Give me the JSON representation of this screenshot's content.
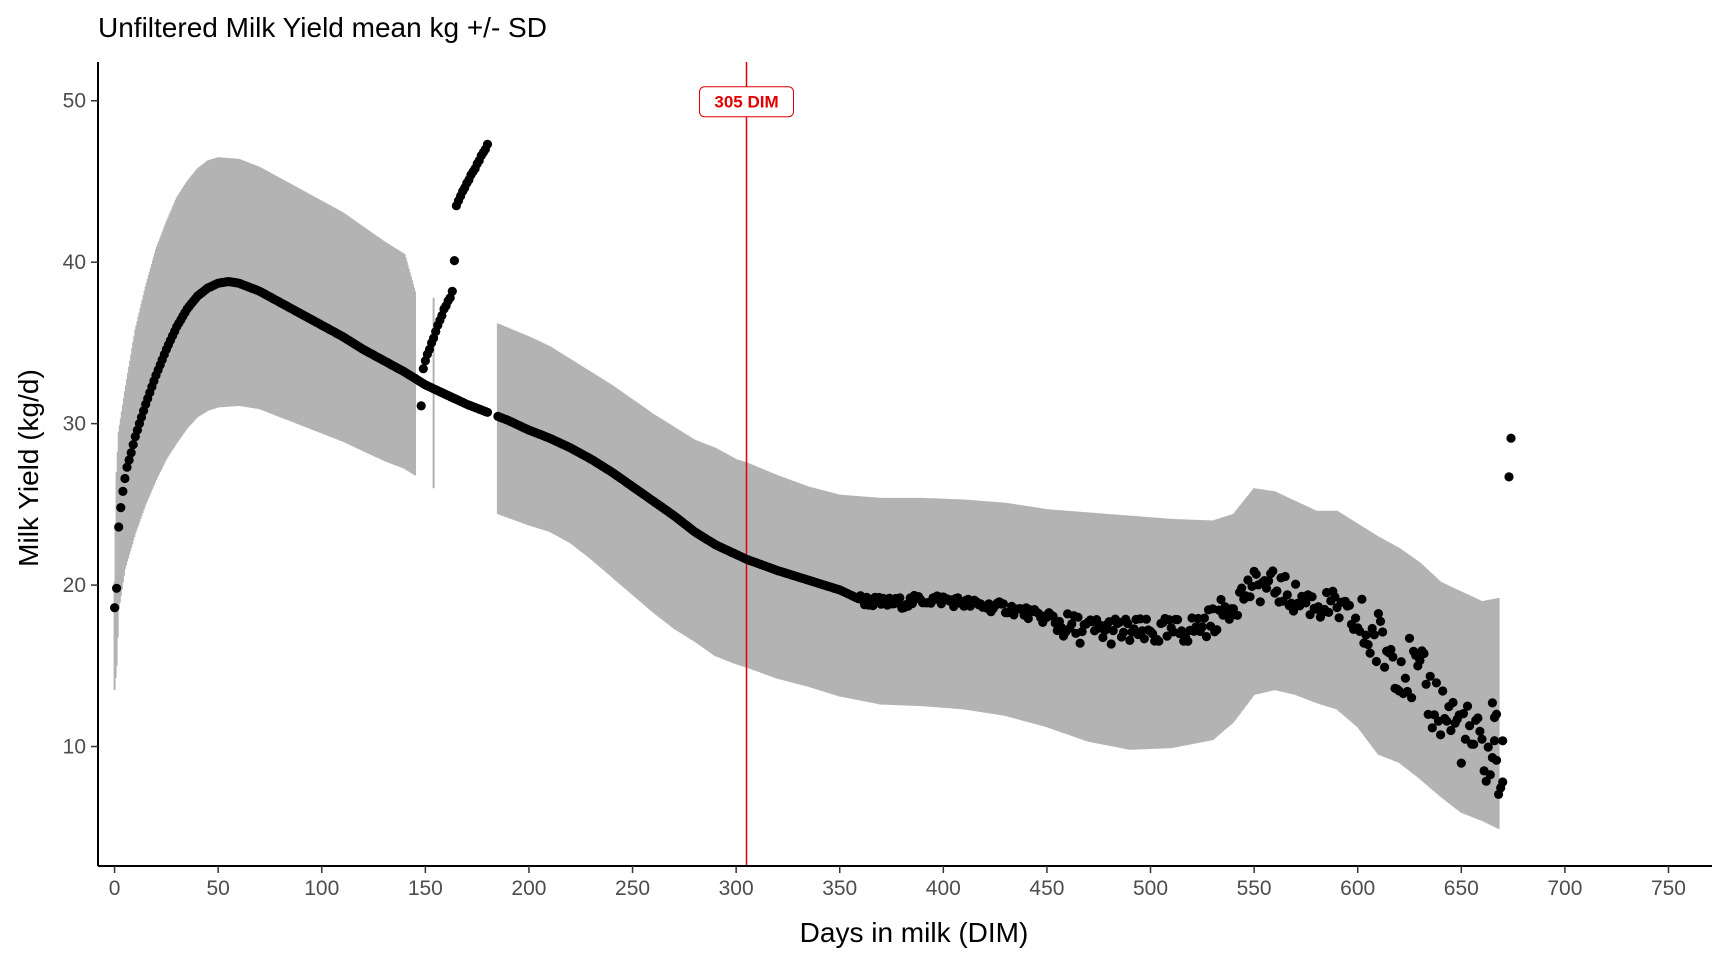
{
  "chart_data": {
    "type": "scatter",
    "title": "Unfiltered Milk Yield mean kg +/- SD",
    "xlabel": "Days in milk (DIM)",
    "ylabel": "Milk Yield (kg/d)",
    "xlim": [
      -8,
      771
    ],
    "ylim": [
      2.6,
      52.4
    ],
    "xticks": [
      0,
      50,
      100,
      150,
      200,
      250,
      300,
      350,
      400,
      450,
      500,
      550,
      600,
      650,
      700,
      750
    ],
    "yticks": [
      10,
      20,
      30,
      40,
      50
    ],
    "grid": false,
    "legend": "none",
    "colors": {
      "points": "#000000",
      "band": "#b3b3b3",
      "reference": "#e00000"
    },
    "reference_line": {
      "x": 305,
      "label": "305 DIM"
    },
    "mean_curve": [
      [
        0,
        18.6
      ],
      [
        1,
        19.8
      ],
      [
        2,
        23.6
      ],
      [
        3,
        24.8
      ],
      [
        4,
        25.8
      ],
      [
        5,
        26.6
      ],
      [
        6,
        27.3
      ],
      [
        8,
        28.2
      ],
      [
        10,
        29.2
      ],
      [
        15,
        31.2
      ],
      [
        20,
        33.0
      ],
      [
        25,
        34.6
      ],
      [
        30,
        36.0
      ],
      [
        35,
        37.1
      ],
      [
        40,
        37.9
      ],
      [
        45,
        38.4
      ],
      [
        50,
        38.7
      ],
      [
        55,
        38.8
      ],
      [
        60,
        38.7
      ],
      [
        70,
        38.2
      ],
      [
        80,
        37.5
      ],
      [
        90,
        36.8
      ],
      [
        100,
        36.1
      ],
      [
        110,
        35.4
      ],
      [
        120,
        34.6
      ],
      [
        130,
        33.9
      ],
      [
        140,
        33.2
      ],
      [
        145,
        32.8
      ],
      [
        150,
        32.4
      ],
      [
        160,
        31.8
      ],
      [
        170,
        31.2
      ],
      [
        180,
        30.7
      ],
      [
        190,
        30.2
      ],
      [
        200,
        29.6
      ],
      [
        210,
        29.1
      ],
      [
        220,
        28.5
      ],
      [
        230,
        27.8
      ],
      [
        240,
        27.0
      ],
      [
        250,
        26.1
      ],
      [
        260,
        25.2
      ],
      [
        270,
        24.3
      ],
      [
        280,
        23.3
      ],
      [
        290,
        22.5
      ],
      [
        300,
        21.9
      ],
      [
        305,
        21.6
      ],
      [
        320,
        20.9
      ],
      [
        335,
        20.3
      ],
      [
        350,
        19.7
      ],
      [
        360,
        19.1
      ],
      [
        370,
        18.9
      ],
      [
        380,
        18.9
      ],
      [
        390,
        19.1
      ],
      [
        400,
        19.1
      ],
      [
        410,
        18.9
      ],
      [
        420,
        18.7
      ],
      [
        430,
        18.6
      ],
      [
        440,
        18.3
      ],
      [
        450,
        17.9
      ],
      [
        460,
        17.4
      ],
      [
        470,
        17.2
      ],
      [
        480,
        17.2
      ],
      [
        490,
        17.1
      ],
      [
        500,
        17.0
      ],
      [
        510,
        17.1
      ],
      [
        520,
        17.3
      ],
      [
        530,
        17.8
      ],
      [
        540,
        18.9
      ],
      [
        548,
        19.8
      ],
      [
        555,
        20.0
      ],
      [
        560,
        19.9
      ],
      [
        570,
        19.2
      ],
      [
        580,
        18.8
      ],
      [
        590,
        18.6
      ],
      [
        600,
        17.5
      ],
      [
        610,
        16.4
      ],
      [
        620,
        15.5
      ],
      [
        630,
        13.9
      ],
      [
        640,
        12.4
      ],
      [
        650,
        11.0
      ],
      [
        660,
        9.6
      ],
      [
        670,
        8.4
      ]
    ],
    "sd_band": [
      [
        0,
        13.5,
        20.2
      ],
      [
        1,
        15.0,
        27.0
      ],
      [
        2,
        18.5,
        29.5
      ],
      [
        5,
        21.0,
        32.0
      ],
      [
        10,
        23.2,
        35.8
      ],
      [
        15,
        25.0,
        38.5
      ],
      [
        20,
        26.5,
        40.8
      ],
      [
        25,
        27.8,
        42.5
      ],
      [
        30,
        28.8,
        44.0
      ],
      [
        35,
        29.7,
        45.0
      ],
      [
        40,
        30.4,
        45.8
      ],
      [
        45,
        30.8,
        46.3
      ],
      [
        50,
        31.0,
        46.5
      ],
      [
        60,
        31.1,
        46.4
      ],
      [
        70,
        30.9,
        45.9
      ],
      [
        80,
        30.4,
        45.2
      ],
      [
        90,
        29.9,
        44.5
      ],
      [
        100,
        29.4,
        43.8
      ],
      [
        110,
        28.9,
        43.1
      ],
      [
        120,
        28.3,
        42.2
      ],
      [
        130,
        27.7,
        41.3
      ],
      [
        140,
        27.2,
        40.5
      ],
      [
        145,
        26.8,
        38.2
      ],
      [
        185,
        24.4,
        36.2
      ],
      [
        200,
        23.7,
        35.4
      ],
      [
        210,
        23.3,
        34.8
      ],
      [
        220,
        22.6,
        34.0
      ],
      [
        230,
        21.6,
        33.2
      ],
      [
        240,
        20.5,
        32.4
      ],
      [
        250,
        19.4,
        31.5
      ],
      [
        260,
        18.3,
        30.6
      ],
      [
        270,
        17.3,
        29.8
      ],
      [
        280,
        16.5,
        29.0
      ],
      [
        290,
        15.6,
        28.5
      ],
      [
        300,
        15.1,
        27.8
      ],
      [
        305,
        14.9,
        27.6
      ],
      [
        320,
        14.2,
        26.8
      ],
      [
        335,
        13.7,
        26.1
      ],
      [
        350,
        13.1,
        25.6
      ],
      [
        370,
        12.6,
        25.4
      ],
      [
        390,
        12.5,
        25.4
      ],
      [
        410,
        12.3,
        25.3
      ],
      [
        430,
        11.9,
        25.1
      ],
      [
        450,
        11.2,
        24.7
      ],
      [
        470,
        10.3,
        24.5
      ],
      [
        490,
        9.8,
        24.3
      ],
      [
        510,
        9.9,
        24.1
      ],
      [
        530,
        10.4,
        24.0
      ],
      [
        540,
        11.5,
        24.4
      ],
      [
        550,
        13.2,
        26.0
      ],
      [
        560,
        13.5,
        25.8
      ],
      [
        570,
        13.2,
        25.2
      ],
      [
        580,
        12.7,
        24.6
      ],
      [
        590,
        12.3,
        24.6
      ],
      [
        600,
        11.2,
        23.8
      ],
      [
        610,
        9.5,
        23.0
      ],
      [
        620,
        9.0,
        22.3
      ],
      [
        630,
        8.0,
        21.4
      ],
      [
        640,
        6.9,
        20.2
      ],
      [
        650,
        5.9,
        19.6
      ],
      [
        660,
        5.4,
        19.0
      ],
      [
        668,
        4.9,
        19.2
      ]
    ],
    "isolated_bars": [
      [
        154,
        26.0,
        37.8
      ]
    ],
    "artifact_points": [
      [
        148,
        31.1
      ],
      [
        149,
        33.4
      ],
      [
        150,
        33.9
      ],
      [
        151,
        34.3
      ],
      [
        152,
        34.6
      ],
      [
        153,
        35.0
      ],
      [
        154,
        35.3
      ],
      [
        155,
        35.7
      ],
      [
        156,
        36.1
      ],
      [
        157,
        36.4
      ],
      [
        158,
        36.7
      ],
      [
        159,
        37.1
      ],
      [
        160,
        37.3
      ],
      [
        161,
        37.6
      ],
      [
        162,
        37.8
      ],
      [
        163,
        38.2
      ],
      [
        164,
        40.1
      ],
      [
        165,
        43.5
      ],
      [
        166,
        43.8
      ],
      [
        167,
        44.1
      ],
      [
        168,
        44.4
      ],
      [
        169,
        44.6
      ],
      [
        170,
        44.9
      ],
      [
        171,
        45.1
      ],
      [
        172,
        45.4
      ],
      [
        173,
        45.6
      ],
      [
        174,
        45.8
      ],
      [
        175,
        46.1
      ],
      [
        176,
        46.3
      ],
      [
        177,
        46.6
      ],
      [
        178,
        46.8
      ],
      [
        179,
        47.0
      ],
      [
        180,
        47.3
      ],
      [
        665,
        12.7
      ],
      [
        666,
        11.8
      ],
      [
        667,
        12.0
      ],
      [
        670,
        7.8
      ],
      [
        673,
        26.7
      ],
      [
        674,
        29.1
      ]
    ]
  }
}
